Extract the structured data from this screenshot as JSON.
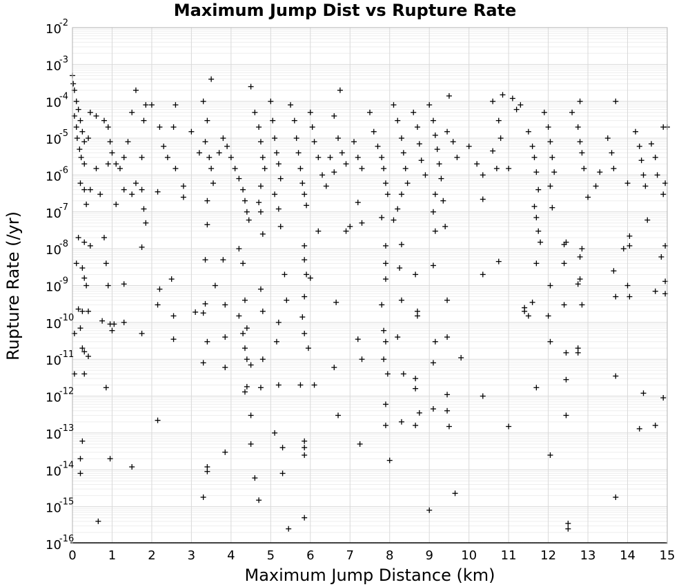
{
  "chart_data": {
    "type": "scatter",
    "title": "Maximum Jump Dist vs Rupture Rate",
    "xlabel": "Maximum Jump Distance (km)",
    "ylabel": "Rupture Rate (/yr)",
    "xlim": [
      0,
      15
    ],
    "ylim": [
      1e-16,
      0.01
    ],
    "yscale": "log",
    "grid": true,
    "marker": "plus",
    "x_ticks": [
      "0",
      "1",
      "2",
      "3",
      "4",
      "5",
      "6",
      "7",
      "8",
      "9",
      "10",
      "11",
      "12",
      "13",
      "14",
      "15"
    ],
    "y_ticks": [
      {
        "base": "10",
        "exp": "-16"
      },
      {
        "base": "10",
        "exp": "-15"
      },
      {
        "base": "10",
        "exp": "-14"
      },
      {
        "base": "10",
        "exp": "-13"
      },
      {
        "base": "10",
        "exp": "-12"
      },
      {
        "base": "10",
        "exp": "-11"
      },
      {
        "base": "10",
        "exp": "-10"
      },
      {
        "base": "10",
        "exp": "-9"
      },
      {
        "base": "10",
        "exp": "-8"
      },
      {
        "base": "10",
        "exp": "-7"
      },
      {
        "base": "10",
        "exp": "-6"
      },
      {
        "base": "10",
        "exp": "-5"
      },
      {
        "base": "10",
        "exp": "-4"
      },
      {
        "base": "10",
        "exp": "-3"
      },
      {
        "base": "10",
        "exp": "-2"
      }
    ],
    "points": [
      [
        0.0,
        0.0005
      ],
      [
        0.02,
        0.0003
      ],
      [
        0.05,
        0.0002
      ],
      [
        0.1,
        0.0001
      ],
      [
        0.15,
        6e-05
      ],
      [
        0.2,
        3e-05
      ],
      [
        0.25,
        1.5e-05
      ],
      [
        0.3,
        8e-06
      ],
      [
        0.05,
        4e-05
      ],
      [
        0.1,
        2e-05
      ],
      [
        0.12,
        1e-05
      ],
      [
        0.18,
        5e-06
      ],
      [
        0.22,
        3e-06
      ],
      [
        0.3,
        2e-06
      ],
      [
        0.4,
        1e-05
      ],
      [
        0.45,
        5e-05
      ],
      [
        0.2,
        6e-07
      ],
      [
        0.3,
        4e-07
      ],
      [
        0.35,
        1.6e-07
      ],
      [
        0.45,
        4e-07
      ],
      [
        0.15,
        2e-08
      ],
      [
        0.3,
        1.5e-08
      ],
      [
        0.45,
        1.2e-08
      ],
      [
        0.8,
        2e-08
      ],
      [
        0.1,
        4e-09
      ],
      [
        0.25,
        3e-09
      ],
      [
        0.3,
        1.6e-09
      ],
      [
        0.35,
        1e-09
      ],
      [
        0.85,
        4e-09
      ],
      [
        0.9,
        1e-09
      ],
      [
        1.3,
        1.1e-09
      ],
      [
        0.15,
        2.3e-10
      ],
      [
        0.25,
        2e-10
      ],
      [
        0.4,
        2e-10
      ],
      [
        0.2,
        7e-11
      ],
      [
        0.05,
        5e-11
      ],
      [
        0.75,
        1.1e-10
      ],
      [
        0.95,
        9e-11
      ],
      [
        1.0,
        6e-11
      ],
      [
        1.05,
        9e-11
      ],
      [
        1.3,
        1e-10
      ],
      [
        1.75,
        5e-11
      ],
      [
        0.25,
        2e-11
      ],
      [
        0.3,
        1.6e-11
      ],
      [
        0.4,
        1.2e-11
      ],
      [
        0.05,
        4e-12
      ],
      [
        0.3,
        4e-12
      ],
      [
        0.85,
        1.7e-12
      ],
      [
        0.25,
        6e-14
      ],
      [
        0.2,
        2e-14
      ],
      [
        0.2,
        8e-15
      ],
      [
        0.95,
        2e-14
      ],
      [
        1.5,
        1.2e-14
      ],
      [
        0.65,
        4e-16
      ],
      [
        2.15,
        2.2e-13
      ],
      [
        0.6,
        4e-05
      ],
      [
        0.8,
        3e-05
      ],
      [
        0.9,
        2e-05
      ],
      [
        0.95,
        8e-06
      ],
      [
        1.0,
        4e-06
      ],
      [
        1.1,
        2e-06
      ],
      [
        1.2,
        1.5e-06
      ],
      [
        1.3,
        3e-06
      ],
      [
        1.4,
        8e-06
      ],
      [
        1.5,
        5e-05
      ],
      [
        1.6,
        0.0002
      ],
      [
        0.6,
        1.5e-06
      ],
      [
        0.7,
        3e-07
      ],
      [
        0.9,
        2e-06
      ],
      [
        1.1,
        1.6e-07
      ],
      [
        1.3,
        4e-07
      ],
      [
        1.5,
        3e-07
      ],
      [
        1.6,
        6e-07
      ],
      [
        1.75,
        4e-07
      ],
      [
        1.8,
        1.2e-07
      ],
      [
        1.85,
        5e-08
      ],
      [
        1.75,
        1.1e-08
      ],
      [
        1.75,
        3e-06
      ],
      [
        1.8,
        3e-05
      ],
      [
        1.85,
        8e-05
      ],
      [
        2.0,
        8e-05
      ],
      [
        2.2,
        2e-05
      ],
      [
        2.3,
        6e-06
      ],
      [
        2.4,
        3e-06
      ],
      [
        2.15,
        3.5e-07
      ],
      [
        2.2,
        8e-10
      ],
      [
        2.15,
        3e-10
      ],
      [
        2.55,
        1.5e-10
      ],
      [
        2.55,
        3.5e-11
      ],
      [
        2.5,
        1.5e-09
      ],
      [
        2.6,
        8e-05
      ],
      [
        2.55,
        2e-05
      ],
      [
        2.6,
        1.5e-06
      ],
      [
        2.8,
        5e-07
      ],
      [
        2.8,
        2.5e-07
      ],
      [
        3.0,
        1.5e-05
      ],
      [
        3.2,
        4e-06
      ],
      [
        3.3,
        0.0001
      ],
      [
        3.4,
        3e-05
      ],
      [
        3.35,
        8e-06
      ],
      [
        3.45,
        3e-06
      ],
      [
        3.5,
        1.5e-06
      ],
      [
        3.55,
        6e-07
      ],
      [
        3.4,
        2e-07
      ],
      [
        3.4,
        4.5e-08
      ],
      [
        3.35,
        5e-09
      ],
      [
        3.1,
        1.9e-10
      ],
      [
        3.3,
        1.8e-10
      ],
      [
        3.35,
        3.2e-10
      ],
      [
        3.4,
        3e-11
      ],
      [
        3.3,
        8e-12
      ],
      [
        3.4,
        1.2e-14
      ],
      [
        3.4,
        9e-15
      ],
      [
        3.3,
        1.8e-15
      ],
      [
        3.6,
        1e-09
      ],
      [
        3.8,
        5e-09
      ],
      [
        3.85,
        3e-10
      ],
      [
        3.85,
        4e-11
      ],
      [
        3.85,
        6e-12
      ],
      [
        3.85,
        3e-14
      ],
      [
        3.5,
        0.0004
      ],
      [
        3.7,
        4e-06
      ],
      [
        3.8,
        1e-05
      ],
      [
        3.9,
        6e-06
      ],
      [
        4.0,
        3e-06
      ],
      [
        4.1,
        1.5e-06
      ],
      [
        4.2,
        8e-07
      ],
      [
        4.3,
        4e-07
      ],
      [
        4.35,
        2e-07
      ],
      [
        4.4,
        1e-07
      ],
      [
        4.45,
        6e-08
      ],
      [
        4.2,
        1e-08
      ],
      [
        4.3,
        4e-09
      ],
      [
        4.35,
        4e-10
      ],
      [
        4.2,
        1.5e-10
      ],
      [
        4.4,
        7e-11
      ],
      [
        4.3,
        5e-11
      ],
      [
        4.35,
        2e-11
      ],
      [
        4.4,
        1e-11
      ],
      [
        4.5,
        7e-12
      ],
      [
        4.4,
        1.8e-12
      ],
      [
        4.35,
        1.3e-12
      ],
      [
        4.5,
        3e-13
      ],
      [
        4.5,
        5e-14
      ],
      [
        4.6,
        6e-15
      ],
      [
        4.7,
        1.5e-15
      ],
      [
        4.5,
        0.00025
      ],
      [
        4.6,
        5e-05
      ],
      [
        4.7,
        2e-05
      ],
      [
        4.75,
        8e-06
      ],
      [
        4.8,
        3e-06
      ],
      [
        4.85,
        1.5e-06
      ],
      [
        4.75,
        5e-07
      ],
      [
        4.7,
        1.8e-07
      ],
      [
        4.75,
        1e-07
      ],
      [
        4.8,
        2.5e-08
      ],
      [
        4.75,
        8e-10
      ],
      [
        4.8,
        2e-10
      ],
      [
        4.8,
        1e-11
      ],
      [
        4.75,
        1.7e-12
      ],
      [
        5.0,
        0.0001
      ],
      [
        5.05,
        3e-05
      ],
      [
        5.1,
        1e-05
      ],
      [
        5.15,
        4e-06
      ],
      [
        5.2,
        2e-06
      ],
      [
        5.25,
        8e-07
      ],
      [
        5.1,
        3e-07
      ],
      [
        5.2,
        1.2e-07
      ],
      [
        5.25,
        4e-08
      ],
      [
        5.35,
        2e-09
      ],
      [
        5.4,
        4e-10
      ],
      [
        5.2,
        1e-10
      ],
      [
        5.15,
        3e-11
      ],
      [
        5.2,
        2e-12
      ],
      [
        5.1,
        1e-13
      ],
      [
        5.3,
        4e-14
      ],
      [
        5.3,
        8e-15
      ],
      [
        5.45,
        2.5e-16
      ],
      [
        5.5,
        8e-05
      ],
      [
        5.6,
        3e-05
      ],
      [
        5.65,
        1e-05
      ],
      [
        5.7,
        4e-06
      ],
      [
        5.75,
        1.5e-06
      ],
      [
        5.8,
        6e-07
      ],
      [
        5.85,
        3e-07
      ],
      [
        5.9,
        1.5e-07
      ],
      [
        5.85,
        1.2e-08
      ],
      [
        5.85,
        5e-09
      ],
      [
        5.9,
        2e-09
      ],
      [
        5.85,
        5e-10
      ],
      [
        5.8,
        1.4e-10
      ],
      [
        5.85,
        5e-11
      ],
      [
        5.95,
        2e-11
      ],
      [
        5.75,
        2e-12
      ],
      [
        5.85,
        6e-14
      ],
      [
        5.85,
        4e-14
      ],
      [
        5.85,
        2.5e-14
      ],
      [
        5.85,
        5e-16
      ],
      [
        6.0,
        5e-05
      ],
      [
        6.05,
        2e-05
      ],
      [
        6.1,
        8e-06
      ],
      [
        6.2,
        3e-06
      ],
      [
        6.3,
        1e-06
      ],
      [
        6.4,
        5e-07
      ],
      [
        6.2,
        3e-08
      ],
      [
        6.0,
        1.6e-09
      ],
      [
        6.1,
        2e-12
      ],
      [
        6.5,
        3e-06
      ],
      [
        6.6,
        1.2e-06
      ],
      [
        6.6,
        4e-05
      ],
      [
        6.7,
        1e-05
      ],
      [
        6.75,
        0.0002
      ],
      [
        6.8,
        4e-06
      ],
      [
        6.9,
        2e-06
      ],
      [
        6.65,
        3.5e-10
      ],
      [
        6.6,
        6e-12
      ],
      [
        6.7,
        3e-13
      ],
      [
        6.9,
        3e-08
      ],
      [
        7.0,
        4e-08
      ],
      [
        7.1,
        8e-06
      ],
      [
        7.2,
        3e-06
      ],
      [
        7.3,
        1.5e-06
      ],
      [
        7.2,
        1.8e-07
      ],
      [
        7.3,
        5e-08
      ],
      [
        7.25,
        5e-14
      ],
      [
        7.2,
        3.5e-11
      ],
      [
        7.3,
        1e-11
      ],
      [
        7.5,
        5e-05
      ],
      [
        7.6,
        1.5e-05
      ],
      [
        7.7,
        6e-06
      ],
      [
        7.8,
        3e-06
      ],
      [
        7.85,
        1.5e-06
      ],
      [
        7.9,
        6e-07
      ],
      [
        7.95,
        3e-07
      ],
      [
        7.8,
        7e-08
      ],
      [
        7.9,
        1.2e-08
      ],
      [
        7.9,
        4e-09
      ],
      [
        7.9,
        1.5e-09
      ],
      [
        7.8,
        3e-10
      ],
      [
        7.85,
        6e-11
      ],
      [
        7.9,
        3e-11
      ],
      [
        7.85,
        1e-11
      ],
      [
        7.95,
        4e-12
      ],
      [
        7.9,
        6e-13
      ],
      [
        7.9,
        1.6e-13
      ],
      [
        8.0,
        1.8e-14
      ],
      [
        8.1,
        8e-05
      ],
      [
        8.2,
        3e-05
      ],
      [
        8.3,
        1e-05
      ],
      [
        8.35,
        4e-06
      ],
      [
        8.4,
        1.5e-06
      ],
      [
        8.45,
        6e-07
      ],
      [
        8.3,
        3e-07
      ],
      [
        8.2,
        1.2e-07
      ],
      [
        8.1,
        6e-08
      ],
      [
        8.3,
        1.3e-08
      ],
      [
        8.25,
        3e-09
      ],
      [
        8.3,
        4e-10
      ],
      [
        8.2,
        4e-11
      ],
      [
        8.35,
        4e-12
      ],
      [
        8.3,
        2e-13
      ],
      [
        8.6,
        5e-05
      ],
      [
        8.7,
        2e-05
      ],
      [
        8.75,
        7e-06
      ],
      [
        8.8,
        2.5e-06
      ],
      [
        8.9,
        1e-06
      ],
      [
        8.65,
        2e-09
      ],
      [
        8.7,
        2e-10
      ],
      [
        8.7,
        1.5e-10
      ],
      [
        8.65,
        1.6e-12
      ],
      [
        8.65,
        3e-12
      ],
      [
        8.75,
        3.5e-13
      ],
      [
        8.65,
        1.6e-13
      ],
      [
        9.0,
        8e-05
      ],
      [
        9.1,
        3e-05
      ],
      [
        9.15,
        1.2e-05
      ],
      [
        9.2,
        5e-06
      ],
      [
        9.25,
        2e-06
      ],
      [
        9.3,
        8e-07
      ],
      [
        9.15,
        3e-07
      ],
      [
        9.1,
        1e-07
      ],
      [
        9.15,
        3e-08
      ],
      [
        9.1,
        3.5e-09
      ],
      [
        9.15,
        3e-11
      ],
      [
        9.1,
        8e-12
      ],
      [
        9.1,
        4.5e-13
      ],
      [
        9.0,
        8e-16
      ],
      [
        9.35,
        2e-07
      ],
      [
        9.4,
        4e-08
      ],
      [
        9.45,
        1.5e-05
      ],
      [
        9.5,
        0.00014
      ],
      [
        9.45,
        4e-10
      ],
      [
        9.45,
        4e-11
      ],
      [
        9.45,
        1.1e-12
      ],
      [
        9.45,
        4e-13
      ],
      [
        9.5,
        1.5e-13
      ],
      [
        9.6,
        8e-06
      ],
      [
        9.7,
        3e-06
      ],
      [
        9.65,
        2.3e-15
      ],
      [
        9.8,
        1.1e-11
      ],
      [
        10.0,
        6e-06
      ],
      [
        10.2,
        2e-06
      ],
      [
        10.35,
        1e-06
      ],
      [
        10.35,
        2.2e-07
      ],
      [
        10.35,
        2e-09
      ],
      [
        10.35,
        1e-12
      ],
      [
        10.6,
        4.5e-06
      ],
      [
        10.7,
        1.5e-06
      ],
      [
        10.6,
        0.0001
      ],
      [
        10.75,
        3e-05
      ],
      [
        10.8,
        1e-05
      ],
      [
        10.85,
        0.00015
      ],
      [
        10.75,
        4.5e-09
      ],
      [
        11.0,
        1.5e-13
      ],
      [
        11.0,
        1.5e-06
      ],
      [
        11.2,
        6e-05
      ],
      [
        11.1,
        0.00012
      ],
      [
        11.3,
        8e-05
      ],
      [
        11.4,
        2.5e-10
      ],
      [
        11.5,
        1.5e-10
      ],
      [
        11.6,
        3.5e-10
      ],
      [
        11.4,
        2e-10
      ],
      [
        11.5,
        1.5e-05
      ],
      [
        11.6,
        6e-06
      ],
      [
        11.65,
        3e-06
      ],
      [
        11.7,
        1.2e-06
      ],
      [
        11.75,
        4e-07
      ],
      [
        11.65,
        1.4e-07
      ],
      [
        11.7,
        7e-08
      ],
      [
        11.75,
        3e-08
      ],
      [
        11.8,
        1.5e-08
      ],
      [
        11.7,
        4e-09
      ],
      [
        11.7,
        1.7e-12
      ],
      [
        11.9,
        5e-05
      ],
      [
        12.0,
        2e-05
      ],
      [
        12.05,
        8e-06
      ],
      [
        12.1,
        3e-06
      ],
      [
        12.15,
        1.2e-06
      ],
      [
        12.05,
        5e-07
      ],
      [
        12.1,
        1.3e-07
      ],
      [
        12.05,
        1e-09
      ],
      [
        12.0,
        1.5e-10
      ],
      [
        12.05,
        3e-11
      ],
      [
        12.05,
        2.5e-14
      ],
      [
        12.4,
        1.3e-08
      ],
      [
        12.45,
        1.5e-08
      ],
      [
        12.4,
        4e-09
      ],
      [
        12.4,
        3e-10
      ],
      [
        12.45,
        1.5e-11
      ],
      [
        12.45,
        2.8e-12
      ],
      [
        12.45,
        3e-13
      ],
      [
        12.5,
        3.5e-16
      ],
      [
        12.5,
        2.5e-16
      ],
      [
        12.6,
        5e-05
      ],
      [
        12.75,
        2e-05
      ],
      [
        12.8,
        8e-06
      ],
      [
        12.85,
        4e-06
      ],
      [
        12.9,
        1.5e-06
      ],
      [
        12.8,
        0.0001
      ],
      [
        12.85,
        1e-08
      ],
      [
        12.8,
        6e-09
      ],
      [
        12.8,
        1.5e-09
      ],
      [
        12.75,
        1.1e-09
      ],
      [
        12.85,
        3e-10
      ],
      [
        12.75,
        2e-11
      ],
      [
        12.75,
        1.5e-11
      ],
      [
        13.0,
        2.5e-07
      ],
      [
        13.2,
        5e-07
      ],
      [
        13.3,
        1.2e-06
      ],
      [
        13.5,
        1e-05
      ],
      [
        13.6,
        4e-06
      ],
      [
        13.65,
        1.5e-06
      ],
      [
        13.7,
        0.0001
      ],
      [
        13.65,
        2.5e-09
      ],
      [
        13.7,
        5e-10
      ],
      [
        13.7,
        3.5e-12
      ],
      [
        13.7,
        1.8e-15
      ],
      [
        13.9,
        1e-08
      ],
      [
        14.0,
        6e-07
      ],
      [
        14.05,
        1.2e-08
      ],
      [
        14.05,
        2.2e-08
      ],
      [
        14.0,
        1e-09
      ],
      [
        14.05,
        5e-10
      ],
      [
        14.2,
        1.5e-05
      ],
      [
        14.3,
        6e-06
      ],
      [
        14.35,
        2.5e-06
      ],
      [
        14.4,
        1e-06
      ],
      [
        14.45,
        5e-07
      ],
      [
        14.3,
        1.3e-13
      ],
      [
        14.4,
        1.2e-12
      ],
      [
        14.5,
        6e-08
      ],
      [
        14.6,
        7e-06
      ],
      [
        14.7,
        3e-06
      ],
      [
        14.75,
        1e-06
      ],
      [
        14.7,
        7e-10
      ],
      [
        14.7,
        1.6e-13
      ],
      [
        14.85,
        6e-09
      ],
      [
        14.9,
        2e-05
      ],
      [
        14.95,
        1.3e-09
      ],
      [
        14.95,
        6e-10
      ],
      [
        14.95,
        1.2e-08
      ],
      [
        14.9,
        9e-13
      ],
      [
        14.95,
        6e-07
      ],
      [
        14.9,
        3e-07
      ],
      [
        15.0,
        2e-05
      ]
    ]
  }
}
